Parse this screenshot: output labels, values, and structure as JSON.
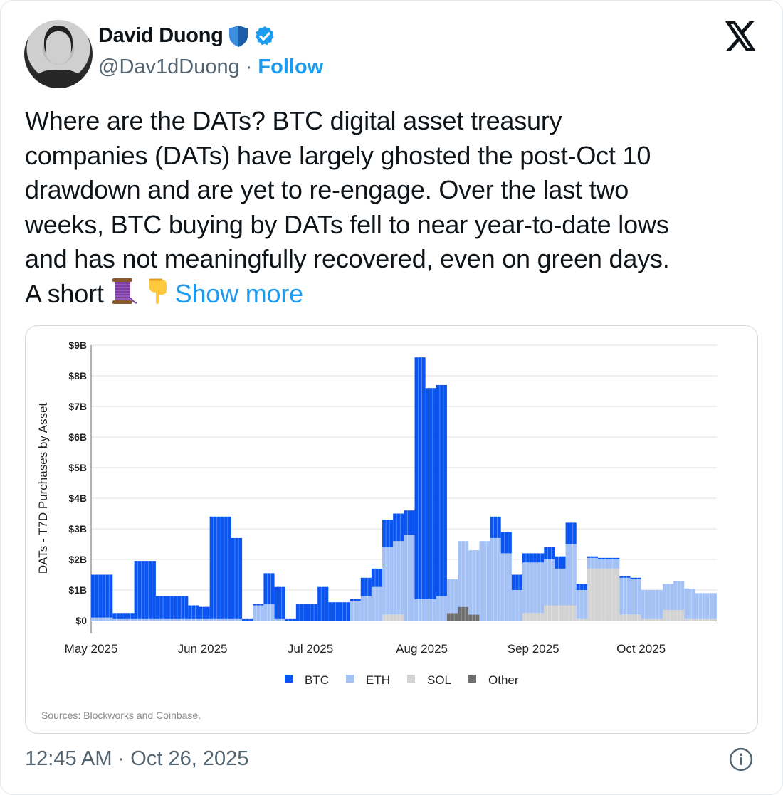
{
  "author": {
    "name": "David Duong",
    "handle": "@Dav1dDuong",
    "separator": "·",
    "follow_label": "Follow",
    "badges": [
      "shield-icon",
      "verified-badge-icon"
    ]
  },
  "platform_logo": "x-logo-icon",
  "tweet": {
    "lines": [
      "Where are the DATs? BTC digital asset treasury",
      "companies (DATs) have largely ghosted the post-Oct 10",
      "drawdown and are yet to re-engage. Over the last two",
      "weeks, BTC buying by DATs fell to near year-to-date lows",
      "and has not meaningfully recovered, even on green days."
    ],
    "last_line_prefix": "A short",
    "emojis": [
      "thread-spool-emoji",
      "pointing-down-emoji"
    ],
    "show_more_label": "Show more"
  },
  "timestamp": "12:45 AM · Oct 26, 2025",
  "colors": {
    "accent": "#1d9bf0",
    "btc": "#0a55f2",
    "eth": "#a3c1f5",
    "sol": "#d3d3d3",
    "other": "#6e6e6e"
  },
  "chart_data": {
    "type": "bar",
    "stacked": true,
    "title": "",
    "ylabel": "DATs - T7D Purchases by Asset",
    "xlabel": "",
    "source": "Sources: Blockworks and Coinbase.",
    "ylim": [
      0,
      9
    ],
    "y_unit": "$B",
    "yticks": [
      "$0",
      "$1B",
      "$2B",
      "$3B",
      "$4B",
      "$5B",
      "$6B",
      "$7B",
      "$8B",
      "$9B"
    ],
    "xticks": [
      {
        "label": "May 2025",
        "date": "2025-05-01"
      },
      {
        "label": "Jun 2025",
        "date": "2025-06-01"
      },
      {
        "label": "Jul 2025",
        "date": "2025-07-01"
      },
      {
        "label": "Aug 2025",
        "date": "2025-08-01"
      },
      {
        "label": "Sep 2025",
        "date": "2025-09-01"
      },
      {
        "label": "Oct 2025",
        "date": "2025-10-01"
      }
    ],
    "grid": true,
    "legend": "bottom",
    "series_names": [
      "BTC",
      "ETH",
      "SOL",
      "Other"
    ],
    "points": [
      {
        "date": "2025-05-01",
        "BTC": 1.4,
        "ETH": 0.1,
        "SOL": 0,
        "Other": 0
      },
      {
        "date": "2025-05-04",
        "BTC": 1.4,
        "ETH": 0.1,
        "SOL": 0,
        "Other": 0
      },
      {
        "date": "2025-05-07",
        "BTC": 0.2,
        "ETH": 0.05,
        "SOL": 0,
        "Other": 0
      },
      {
        "date": "2025-05-10",
        "BTC": 0.2,
        "ETH": 0.05,
        "SOL": 0,
        "Other": 0
      },
      {
        "date": "2025-05-13",
        "BTC": 1.9,
        "ETH": 0.05,
        "SOL": 0,
        "Other": 0
      },
      {
        "date": "2025-05-16",
        "BTC": 1.9,
        "ETH": 0.05,
        "SOL": 0,
        "Other": 0
      },
      {
        "date": "2025-05-19",
        "BTC": 0.75,
        "ETH": 0.05,
        "SOL": 0,
        "Other": 0
      },
      {
        "date": "2025-05-22",
        "BTC": 0.75,
        "ETH": 0.05,
        "SOL": 0,
        "Other": 0
      },
      {
        "date": "2025-05-25",
        "BTC": 0.75,
        "ETH": 0.05,
        "SOL": 0,
        "Other": 0
      },
      {
        "date": "2025-05-28",
        "BTC": 0.45,
        "ETH": 0.05,
        "SOL": 0,
        "Other": 0
      },
      {
        "date": "2025-05-31",
        "BTC": 0.4,
        "ETH": 0.05,
        "SOL": 0,
        "Other": 0
      },
      {
        "date": "2025-06-03",
        "BTC": 3.35,
        "ETH": 0.05,
        "SOL": 0,
        "Other": 0
      },
      {
        "date": "2025-06-06",
        "BTC": 3.35,
        "ETH": 0.05,
        "SOL": 0,
        "Other": 0
      },
      {
        "date": "2025-06-09",
        "BTC": 2.65,
        "ETH": 0.05,
        "SOL": 0,
        "Other": 0
      },
      {
        "date": "2025-06-12",
        "BTC": 0.05,
        "ETH": 0,
        "SOL": 0,
        "Other": 0
      },
      {
        "date": "2025-06-15",
        "BTC": 0.05,
        "ETH": 0.5,
        "SOL": 0,
        "Other": 0
      },
      {
        "date": "2025-06-18",
        "BTC": 1.0,
        "ETH": 0.55,
        "SOL": 0,
        "Other": 0
      },
      {
        "date": "2025-06-21",
        "BTC": 1.05,
        "ETH": 0.05,
        "SOL": 0,
        "Other": 0
      },
      {
        "date": "2025-06-24",
        "BTC": 0.05,
        "ETH": 0,
        "SOL": 0,
        "Other": 0
      },
      {
        "date": "2025-06-27",
        "BTC": 0.55,
        "ETH": 0,
        "SOL": 0,
        "Other": 0
      },
      {
        "date": "2025-06-30",
        "BTC": 0.55,
        "ETH": 0,
        "SOL": 0,
        "Other": 0
      },
      {
        "date": "2025-07-03",
        "BTC": 1.1,
        "ETH": 0,
        "SOL": 0,
        "Other": 0
      },
      {
        "date": "2025-07-06",
        "BTC": 0.6,
        "ETH": 0,
        "SOL": 0,
        "Other": 0
      },
      {
        "date": "2025-07-09",
        "BTC": 0.6,
        "ETH": 0,
        "SOL": 0,
        "Other": 0
      },
      {
        "date": "2025-07-12",
        "BTC": 0.05,
        "ETH": 0.65,
        "SOL": 0,
        "Other": 0
      },
      {
        "date": "2025-07-15",
        "BTC": 0.6,
        "ETH": 0.8,
        "SOL": 0,
        "Other": 0
      },
      {
        "date": "2025-07-18",
        "BTC": 0.6,
        "ETH": 1.1,
        "SOL": 0,
        "Other": 0
      },
      {
        "date": "2025-07-21",
        "BTC": 0.9,
        "ETH": 2.2,
        "SOL": 0.2,
        "Other": 0
      },
      {
        "date": "2025-07-24",
        "BTC": 0.9,
        "ETH": 2.4,
        "SOL": 0.2,
        "Other": 0
      },
      {
        "date": "2025-07-27",
        "BTC": 0.8,
        "ETH": 2.8,
        "SOL": 0,
        "Other": 0
      },
      {
        "date": "2025-07-30",
        "BTC": 7.9,
        "ETH": 0.7,
        "SOL": 0,
        "Other": 0
      },
      {
        "date": "2025-08-02",
        "BTC": 6.9,
        "ETH": 0.7,
        "SOL": 0,
        "Other": 0
      },
      {
        "date": "2025-08-05",
        "BTC": 6.9,
        "ETH": 0.8,
        "SOL": 0,
        "Other": 0
      },
      {
        "date": "2025-08-08",
        "BTC": 0,
        "ETH": 1.1,
        "SOL": 0,
        "Other": 0.25
      },
      {
        "date": "2025-08-11",
        "BTC": 0,
        "ETH": 2.15,
        "SOL": 0,
        "Other": 0.45
      },
      {
        "date": "2025-08-14",
        "BTC": 0,
        "ETH": 2.1,
        "SOL": 0,
        "Other": 0.2
      },
      {
        "date": "2025-08-17",
        "BTC": 0,
        "ETH": 2.6,
        "SOL": 0,
        "Other": 0
      },
      {
        "date": "2025-08-20",
        "BTC": 0.7,
        "ETH": 2.7,
        "SOL": 0,
        "Other": 0
      },
      {
        "date": "2025-08-23",
        "BTC": 0.7,
        "ETH": 2.2,
        "SOL": 0,
        "Other": 0
      },
      {
        "date": "2025-08-26",
        "BTC": 0.5,
        "ETH": 1.0,
        "SOL": 0,
        "Other": 0
      },
      {
        "date": "2025-08-29",
        "BTC": 0.3,
        "ETH": 1.65,
        "SOL": 0.25,
        "Other": 0
      },
      {
        "date": "2025-09-01",
        "BTC": 0.3,
        "ETH": 1.65,
        "SOL": 0.25,
        "Other": 0
      },
      {
        "date": "2025-09-04",
        "BTC": 0.4,
        "ETH": 1.5,
        "SOL": 0.5,
        "Other": 0
      },
      {
        "date": "2025-09-07",
        "BTC": 0.4,
        "ETH": 1.2,
        "SOL": 0.5,
        "Other": 0
      },
      {
        "date": "2025-09-10",
        "BTC": 0.7,
        "ETH": 2.0,
        "SOL": 0.5,
        "Other": 0
      },
      {
        "date": "2025-09-13",
        "BTC": 0.2,
        "ETH": 0.95,
        "SOL": 0.05,
        "Other": 0
      },
      {
        "date": "2025-09-16",
        "BTC": 0.05,
        "ETH": 0.35,
        "SOL": 1.7,
        "Other": 0
      },
      {
        "date": "2025-09-19",
        "BTC": 0.05,
        "ETH": 0.3,
        "SOL": 1.7,
        "Other": 0
      },
      {
        "date": "2025-09-22",
        "BTC": 0.05,
        "ETH": 0.3,
        "SOL": 1.7,
        "Other": 0
      },
      {
        "date": "2025-09-25",
        "BTC": 0.05,
        "ETH": 1.2,
        "SOL": 0.2,
        "Other": 0
      },
      {
        "date": "2025-09-28",
        "BTC": 0.05,
        "ETH": 1.15,
        "SOL": 0.2,
        "Other": 0
      },
      {
        "date": "2025-10-01",
        "BTC": 0,
        "ETH": 0.95,
        "SOL": 0.05,
        "Other": 0
      },
      {
        "date": "2025-10-04",
        "BTC": 0,
        "ETH": 0.95,
        "SOL": 0.05,
        "Other": 0
      },
      {
        "date": "2025-10-07",
        "BTC": 0,
        "ETH": 0.85,
        "SOL": 0.35,
        "Other": 0
      },
      {
        "date": "2025-10-10",
        "BTC": 0,
        "ETH": 0.95,
        "SOL": 0.35,
        "Other": 0
      },
      {
        "date": "2025-10-13",
        "BTC": 0,
        "ETH": 1.0,
        "SOL": 0.05,
        "Other": 0
      },
      {
        "date": "2025-10-16",
        "BTC": 0,
        "ETH": 0.85,
        "SOL": 0.05,
        "Other": 0
      },
      {
        "date": "2025-10-19",
        "BTC": 0,
        "ETH": 0.85,
        "SOL": 0.05,
        "Other": 0
      },
      {
        "date": "2025-10-22",
        "BTC": 0,
        "ETH": 0.8,
        "SOL": 0.05,
        "Other": 0
      }
    ]
  }
}
